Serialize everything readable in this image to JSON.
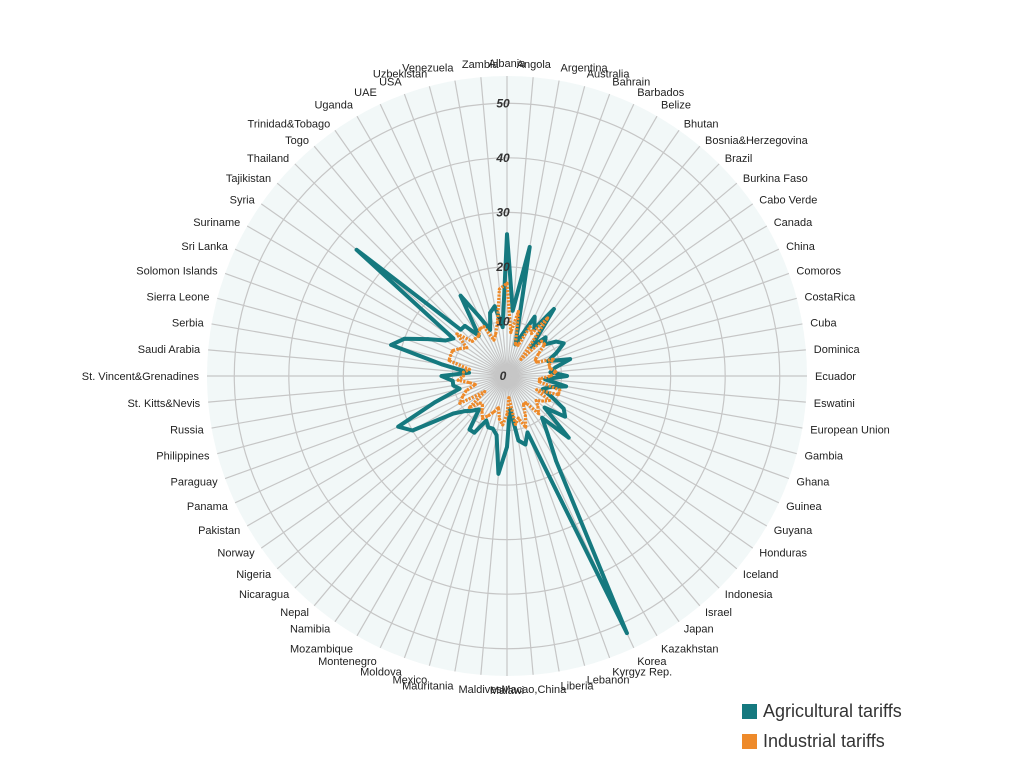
{
  "colors": {
    "agricultural": "#15797f",
    "industrial": "#ee8a2a",
    "grid": "#c6c6c6",
    "fill": "#e3eff0"
  },
  "chart_data": {
    "type": "radar",
    "rlim": [
      0,
      55
    ],
    "ticks": [
      0,
      10,
      20,
      30,
      40,
      50
    ],
    "grid": true,
    "legend_position": "bottom-right",
    "categories": [
      "Albania",
      "Angola",
      "Argentina",
      "Australia",
      "Bahrain",
      "Barbados",
      "Belize",
      "Bhutan",
      "Bosnia&Herzegovina",
      "Brazil",
      "Burkina Faso",
      "Cabo Verde",
      "Canada",
      "China",
      "Comoros",
      "CostaRica",
      "Cuba",
      "Dominica",
      "Ecuador",
      "Eswatini",
      "European Union",
      "Gambia",
      "Ghana",
      "Guinea",
      "Guyana",
      "Honduras",
      "Iceland",
      "Indonesia",
      "Israel",
      "Japan",
      "Kazakhstan",
      "Korea",
      "Kyrgyz Rep.",
      "Lebanon",
      "Liberia",
      "Macao,China",
      "Malawi",
      "Maldives",
      "Mauritania",
      "Mexico",
      "Moldova",
      "Montenegro",
      "Mozambique",
      "Namibia",
      "Nepal",
      "Nicaragua",
      "Nigeria",
      "Norway",
      "Pakistan",
      "Panama",
      "Paraguay",
      "Philippines",
      "Russia",
      "St. Kitts&Nevis",
      "St. Vincent&Grenadines",
      "Saudi Arabia",
      "Serbia",
      "Sierra Leone",
      "Solomon Islands",
      "Sri Lanka",
      "Suriname",
      "Syria",
      "Tajikistan",
      "Thailand",
      "Togo",
      "Trinidad&Tobago",
      "Uganda",
      "UAE",
      "USA",
      "Uzbekistan",
      "Venezuela",
      "Zambia"
    ],
    "series": [
      {
        "name": "Agricultural tariffs",
        "values": [
          26,
          12,
          24,
          6,
          8,
          12,
          10,
          15,
          7,
          10,
          9,
          11,
          12,
          10,
          8,
          12,
          9,
          8,
          11,
          7,
          11,
          8,
          7,
          9,
          12,
          13,
          9,
          16,
          10,
          13,
          18,
          52,
          11,
          13,
          12,
          6,
          13,
          18,
          11,
          10,
          10,
          9,
          12,
          12,
          8,
          9,
          10,
          12,
          20,
          22,
          14,
          9,
          10,
          10,
          12,
          7,
          12,
          22,
          20,
          16,
          13,
          12,
          36,
          12,
          12,
          9,
          17,
          12,
          9,
          12,
          13,
          9
        ]
      },
      {
        "name": "Industrial tariffs",
        "values": [
          17,
          8,
          12,
          6,
          6,
          10,
          9,
          13,
          4,
          9,
          9,
          7,
          6,
          6,
          9,
          8,
          8,
          9,
          8,
          6,
          6,
          10,
          10,
          6,
          9,
          8,
          7,
          8,
          9,
          6,
          6,
          8,
          10,
          8,
          9,
          4,
          7,
          9,
          8,
          6,
          7,
          8,
          9,
          8,
          7,
          7,
          9,
          5,
          10,
          9,
          8,
          6,
          7,
          9,
          8,
          8,
          7,
          11,
          11,
          11,
          10,
          9,
          12,
          9,
          9,
          9,
          10,
          10,
          7,
          8,
          10,
          16
        ]
      }
    ]
  }
}
